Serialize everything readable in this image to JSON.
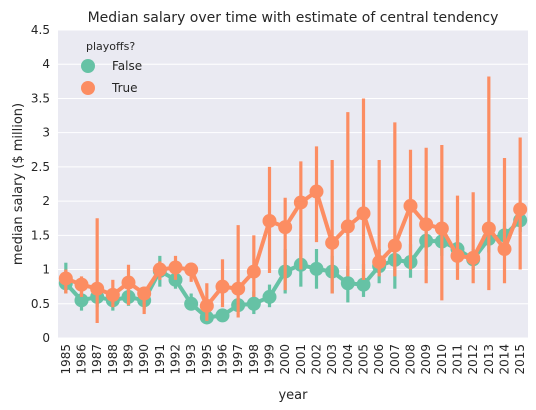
{
  "chart_data": {
    "type": "line",
    "title": "Median salary over time with estimate of central tendency",
    "xlabel": "year",
    "ylabel": "median salary ($ million)",
    "ylim": [
      0,
      4.5
    ],
    "yticks": [
      "0",
      "0.5",
      "1",
      "1.5",
      "2",
      "2.5",
      "3",
      "3.5",
      "4",
      "4.5"
    ],
    "grid": true,
    "legend": {
      "title": "playoffs?",
      "placement": "top-left"
    },
    "categories": [
      "1985",
      "1986",
      "1987",
      "1988",
      "1989",
      "1990",
      "1991",
      "1992",
      "1993",
      "1995",
      "1996",
      "1997",
      "1998",
      "1999",
      "2000",
      "2001",
      "2002",
      "2003",
      "2004",
      "2005",
      "2006",
      "2007",
      "2008",
      "2009",
      "2010",
      "2011",
      "2012",
      "2013",
      "2014",
      "2015"
    ],
    "series": [
      {
        "name": "False",
        "color": "#66c2a5",
        "values": [
          0.8,
          0.55,
          0.6,
          0.55,
          0.6,
          0.55,
          0.98,
          0.85,
          0.5,
          0.3,
          0.33,
          0.48,
          0.5,
          0.6,
          0.97,
          1.07,
          1.01,
          0.97,
          0.8,
          0.78,
          1.05,
          1.14,
          1.11,
          1.42,
          1.41,
          1.3,
          1.15,
          1.45,
          1.5,
          1.72
        ],
        "ci_low": [
          0.65,
          0.4,
          0.45,
          0.4,
          0.47,
          0.42,
          0.75,
          0.72,
          0.43,
          0.25,
          0.27,
          0.38,
          0.35,
          0.45,
          0.65,
          0.75,
          0.72,
          0.65,
          0.52,
          0.6,
          0.8,
          0.72,
          0.88,
          1.05,
          1.2,
          1.0,
          1.0,
          1.25,
          1.3,
          1.55
        ],
        "ci_high": [
          1.1,
          0.7,
          0.75,
          0.7,
          0.75,
          0.68,
          1.2,
          1.0,
          0.65,
          0.42,
          0.42,
          0.58,
          0.68,
          0.78,
          1.3,
          1.45,
          1.3,
          1.2,
          1.05,
          1.08,
          1.3,
          1.4,
          1.37,
          1.68,
          1.68,
          1.5,
          1.3,
          1.68,
          1.7,
          1.85
        ]
      },
      {
        "name": "True",
        "color": "#fc8d62",
        "values": [
          0.87,
          0.78,
          0.72,
          0.63,
          0.81,
          0.65,
          1.0,
          1.03,
          1.0,
          0.47,
          0.75,
          0.72,
          0.97,
          1.71,
          1.62,
          1.98,
          2.14,
          1.39,
          1.63,
          1.82,
          1.11,
          1.35,
          1.93,
          1.66,
          1.6,
          1.2,
          1.17,
          1.6,
          1.3,
          1.88
        ],
        "ci_low": [
          0.65,
          0.6,
          0.22,
          0.45,
          0.48,
          0.35,
          0.85,
          0.85,
          0.82,
          0.25,
          0.45,
          0.3,
          0.6,
          0.95,
          0.7,
          1.0,
          1.4,
          0.65,
          0.9,
          0.85,
          0.9,
          0.9,
          1.0,
          0.8,
          0.55,
          0.85,
          0.8,
          0.7,
          0.8,
          1.0
        ],
        "ci_high": [
          1.0,
          0.9,
          1.75,
          0.85,
          1.07,
          0.75,
          1.12,
          1.2,
          1.1,
          0.8,
          1.15,
          1.65,
          1.5,
          2.5,
          2.05,
          2.58,
          2.8,
          2.6,
          3.3,
          3.5,
          2.6,
          3.15,
          2.75,
          2.78,
          2.82,
          2.08,
          2.13,
          3.82,
          2.63,
          2.93
        ]
      }
    ]
  }
}
